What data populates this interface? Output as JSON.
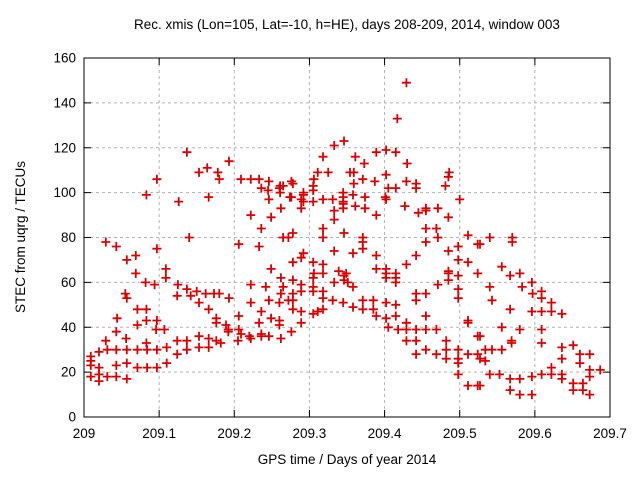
{
  "chart_data": {
    "type": "scatter",
    "title": "Rec. xmis (Lon=105, Lat=-10, h=HE), days 208-209, 2014, window 003",
    "xlabel": "GPS time / Days of year 2014",
    "ylabel": "STEC from uqrg / TECUs",
    "xlim": [
      209,
      209.7
    ],
    "ylim": [
      0,
      160
    ],
    "x_tick_values": [
      209,
      209.1,
      209.2,
      209.3,
      209.4,
      209.5,
      209.6,
      209.7
    ],
    "x_tick_labels": [
      "209",
      "209.1",
      "209.2",
      "209.3",
      "209.4",
      "209.5",
      "209.6",
      "209.7"
    ],
    "y_tick_values": [
      0,
      20,
      40,
      60,
      80,
      100,
      120,
      140,
      160
    ],
    "y_tick_labels": [
      "0",
      "20",
      "40",
      "60",
      "80",
      "100",
      "120",
      "140",
      "160"
    ],
    "grid": true,
    "legend": "none",
    "marker": "plus",
    "marker_color": "#dd0000",
    "grid_color": "#b3b3b3",
    "border_color": "#000000",
    "points": [
      [
        209.137,
        118
      ],
      [
        209.153,
        109
      ],
      [
        209.164,
        111
      ],
      [
        209.178,
        109
      ],
      [
        209.193,
        114
      ],
      [
        209.311,
        109
      ],
      [
        209.318,
        116
      ],
      [
        209.325,
        109
      ],
      [
        209.333,
        121
      ],
      [
        209.346,
        123
      ],
      [
        209.354,
        109
      ],
      [
        209.359,
        109
      ],
      [
        209.361,
        116
      ],
      [
        209.373,
        113
      ],
      [
        209.389,
        118
      ],
      [
        209.402,
        119
      ],
      [
        209.402,
        108
      ],
      [
        209.415,
        118
      ],
      [
        209.417,
        133
      ],
      [
        209.429,
        149
      ],
      [
        209.43,
        113
      ],
      [
        209.486,
        109
      ],
      [
        209.029,
        78
      ],
      [
        209.043,
        76
      ],
      [
        209.055,
        55
      ],
      [
        209.057,
        70
      ],
      [
        209.069,
        72
      ],
      [
        209.069,
        64
      ],
      [
        209.082,
        60
      ],
      [
        209.083,
        99
      ],
      [
        209.094,
        59
      ],
      [
        209.097,
        106
      ],
      [
        209.097,
        75
      ],
      [
        209.109,
        66
      ],
      [
        209.109,
        62
      ],
      [
        209.125,
        59
      ],
      [
        209.126,
        96
      ],
      [
        209.137,
        57
      ],
      [
        209.14,
        80
      ],
      [
        209.15,
        56
      ],
      [
        209.162,
        55
      ],
      [
        209.166,
        98
      ],
      [
        209.173,
        55
      ],
      [
        209.18,
        106
      ],
      [
        209.209,
        106
      ],
      [
        209.222,
        106
      ],
      [
        209.233,
        106
      ],
      [
        209.246,
        105
      ],
      [
        209.276,
        105
      ],
      [
        209.306,
        106
      ],
      [
        209.236,
        102
      ],
      [
        209.245,
        101
      ],
      [
        209.26,
        102
      ],
      [
        209.265,
        103
      ],
      [
        209.246,
        97
      ],
      [
        209.276,
        98
      ],
      [
        209.289,
        97
      ],
      [
        209.292,
        99
      ],
      [
        209.305,
        101
      ],
      [
        209.318,
        97
      ],
      [
        209.331,
        97
      ],
      [
        209.345,
        98
      ],
      [
        209.345,
        96
      ],
      [
        209.345,
        93
      ],
      [
        209.262,
        93
      ],
      [
        209.222,
        90
      ],
      [
        209.249,
        89
      ],
      [
        209.289,
        93
      ],
      [
        209.333,
        92
      ],
      [
        209.333,
        88
      ],
      [
        209.236,
        84
      ],
      [
        209.278,
        82
      ],
      [
        209.265,
        80
      ],
      [
        209.272,
        80
      ],
      [
        209.318,
        84
      ],
      [
        209.318,
        80
      ],
      [
        209.346,
        82
      ],
      [
        209.206,
        77
      ],
      [
        209.233,
        76
      ],
      [
        209.333,
        74
      ],
      [
        209.292,
        73
      ],
      [
        209.289,
        71
      ],
      [
        209.278,
        69
      ],
      [
        209.305,
        69
      ],
      [
        209.318,
        68
      ],
      [
        209.249,
        66
      ],
      [
        209.339,
        65
      ],
      [
        209.349,
        64
      ],
      [
        209.306,
        64
      ],
      [
        209.318,
        64
      ],
      [
        209.262,
        62
      ],
      [
        209.265,
        58
      ],
      [
        209.278,
        61
      ],
      [
        209.222,
        59
      ],
      [
        209.242,
        58
      ],
      [
        209.289,
        59
      ],
      [
        209.305,
        62
      ],
      [
        209.305,
        58
      ],
      [
        209.318,
        56
      ],
      [
        209.333,
        60
      ],
      [
        209.346,
        63
      ],
      [
        209.346,
        61
      ],
      [
        209.289,
        56
      ],
      [
        209.278,
        55
      ],
      [
        209.262,
        55
      ],
      [
        209.305,
        56
      ],
      [
        209.18,
        55
      ],
      [
        209.261,
        103
      ],
      [
        209.261,
        100
      ],
      [
        209.274,
        98
      ],
      [
        209.292,
        100
      ],
      [
        209.292,
        96
      ],
      [
        209.305,
        103
      ],
      [
        209.305,
        96
      ],
      [
        209.345,
        100
      ],
      [
        209.345,
        95
      ],
      [
        209.278,
        104
      ],
      [
        209.371,
        106
      ],
      [
        209.387,
        105
      ],
      [
        209.429,
        105
      ],
      [
        209.442,
        104
      ],
      [
        209.485,
        107
      ],
      [
        209.405,
        102
      ],
      [
        209.415,
        102
      ],
      [
        209.442,
        102
      ],
      [
        209.481,
        103
      ],
      [
        209.358,
        99
      ],
      [
        209.374,
        98
      ],
      [
        209.361,
        94
      ],
      [
        209.374,
        93
      ],
      [
        209.401,
        98
      ],
      [
        209.402,
        97
      ],
      [
        209.389,
        90
      ],
      [
        209.427,
        94
      ],
      [
        209.445,
        91
      ],
      [
        209.455,
        93
      ],
      [
        209.455,
        92
      ],
      [
        209.471,
        93
      ],
      [
        209.5,
        97
      ],
      [
        209.485,
        89
      ],
      [
        209.455,
        84
      ],
      [
        209.469,
        84
      ],
      [
        209.471,
        80
      ],
      [
        209.455,
        78
      ],
      [
        209.371,
        80
      ],
      [
        209.371,
        78
      ],
      [
        209.371,
        75
      ],
      [
        209.511,
        81
      ],
      [
        209.498,
        76
      ],
      [
        209.358,
        73
      ],
      [
        209.389,
        72
      ],
      [
        209.485,
        74
      ],
      [
        209.442,
        72
      ],
      [
        209.429,
        68
      ],
      [
        209.498,
        70
      ],
      [
        209.511,
        69
      ],
      [
        209.389,
        66
      ],
      [
        209.402,
        66
      ],
      [
        209.402,
        64
      ],
      [
        209.402,
        62
      ],
      [
        209.415,
        64
      ],
      [
        209.415,
        62
      ],
      [
        209.351,
        60
      ],
      [
        209.358,
        58
      ],
      [
        209.415,
        60
      ],
      [
        209.442,
        55
      ],
      [
        209.455,
        55
      ],
      [
        209.471,
        59
      ],
      [
        209.485,
        65
      ],
      [
        209.485,
        64
      ],
      [
        209.485,
        61
      ],
      [
        209.498,
        63
      ],
      [
        209.498,
        57
      ],
      [
        209.524,
        64
      ],
      [
        209.524,
        77
      ],
      [
        209.359,
        104
      ],
      [
        209.54,
        80
      ],
      [
        209.57,
        80
      ],
      [
        209.57,
        78
      ],
      [
        209.556,
        67
      ],
      [
        209.567,
        63
      ],
      [
        209.58,
        64
      ],
      [
        209.54,
        58
      ],
      [
        209.583,
        58
      ],
      [
        209.596,
        60
      ],
      [
        209.597,
        55
      ],
      [
        209.609,
        56
      ],
      [
        209.527,
        77
      ],
      [
        209.057,
        53
      ],
      [
        209.124,
        54
      ],
      [
        209.142,
        54
      ],
      [
        209.153,
        51
      ],
      [
        209.166,
        48
      ],
      [
        209.071,
        48
      ],
      [
        209.083,
        48
      ],
      [
        209.044,
        44
      ],
      [
        209.071,
        41
      ],
      [
        209.083,
        43
      ],
      [
        209.097,
        43
      ],
      [
        209.043,
        38
      ],
      [
        209.096,
        39
      ],
      [
        209.107,
        39
      ],
      [
        209.029,
        34
      ],
      [
        209.056,
        35
      ],
      [
        209.083,
        33
      ],
      [
        209.124,
        34
      ],
      [
        209.137,
        34
      ],
      [
        209.153,
        36
      ],
      [
        209.166,
        35
      ],
      [
        209.009,
        27
      ],
      [
        209.02,
        29
      ],
      [
        209.031,
        30
      ],
      [
        209.043,
        30
      ],
      [
        209.057,
        30
      ],
      [
        209.071,
        30
      ],
      [
        209.084,
        30
      ],
      [
        209.097,
        30
      ],
      [
        209.11,
        31
      ],
      [
        209.124,
        28
      ],
      [
        209.137,
        30
      ],
      [
        209.153,
        31
      ],
      [
        209.166,
        31
      ],
      [
        209.009,
        25
      ],
      [
        209.009,
        23
      ],
      [
        209.02,
        22
      ],
      [
        209.043,
        23
      ],
      [
        209.057,
        24
      ],
      [
        209.071,
        22
      ],
      [
        209.084,
        22
      ],
      [
        209.097,
        22
      ],
      [
        209.11,
        24
      ],
      [
        209.009,
        18
      ],
      [
        209.02,
        16
      ],
      [
        209.031,
        18
      ],
      [
        209.043,
        18
      ],
      [
        209.057,
        17
      ],
      [
        209.02,
        19
      ],
      [
        209.193,
        53
      ],
      [
        209.222,
        51
      ],
      [
        209.246,
        52
      ],
      [
        209.26,
        51
      ],
      [
        209.272,
        52
      ],
      [
        209.278,
        52
      ],
      [
        209.278,
        48
      ],
      [
        209.236,
        47
      ],
      [
        209.249,
        44
      ],
      [
        209.26,
        43
      ],
      [
        209.206,
        45
      ],
      [
        209.176,
        44
      ],
      [
        209.176,
        42
      ],
      [
        209.189,
        41
      ],
      [
        209.233,
        42
      ],
      [
        209.26,
        41
      ],
      [
        209.289,
        47
      ],
      [
        209.305,
        46
      ],
      [
        209.311,
        47
      ],
      [
        209.318,
        48
      ],
      [
        209.331,
        52
      ],
      [
        209.345,
        51
      ],
      [
        209.318,
        53
      ],
      [
        209.289,
        42
      ],
      [
        209.192,
        39
      ],
      [
        209.192,
        38
      ],
      [
        209.206,
        39
      ],
      [
        209.209,
        37
      ],
      [
        209.22,
        36
      ],
      [
        209.222,
        35
      ],
      [
        209.236,
        37
      ],
      [
        209.236,
        36
      ],
      [
        209.246,
        36
      ],
      [
        209.262,
        35
      ],
      [
        209.276,
        38
      ],
      [
        209.176,
        34
      ],
      [
        209.182,
        33
      ],
      [
        209.205,
        34
      ],
      [
        209.358,
        49
      ],
      [
        209.371,
        52
      ],
      [
        209.371,
        48
      ],
      [
        209.385,
        52
      ],
      [
        209.385,
        48
      ],
      [
        209.389,
        45
      ],
      [
        209.402,
        51
      ],
      [
        209.402,
        44
      ],
      [
        209.405,
        40
      ],
      [
        209.415,
        50
      ],
      [
        209.415,
        45
      ],
      [
        209.418,
        39
      ],
      [
        209.429,
        42
      ],
      [
        209.429,
        39
      ],
      [
        209.442,
        52
      ],
      [
        209.442,
        39
      ],
      [
        209.429,
        34
      ],
      [
        209.442,
        34
      ],
      [
        209.455,
        45
      ],
      [
        209.455,
        39
      ],
      [
        209.469,
        39
      ],
      [
        209.442,
        28
      ],
      [
        209.455,
        30
      ],
      [
        209.469,
        28
      ],
      [
        209.482,
        34
      ],
      [
        209.482,
        30
      ],
      [
        209.482,
        26
      ],
      [
        209.498,
        53
      ],
      [
        209.498,
        30
      ],
      [
        209.498,
        26
      ],
      [
        209.498,
        24
      ],
      [
        209.498,
        19
      ],
      [
        209.511,
        43
      ],
      [
        209.511,
        42
      ],
      [
        209.511,
        28
      ],
      [
        209.524,
        36
      ],
      [
        209.524,
        28
      ],
      [
        209.511,
        14
      ],
      [
        209.524,
        14
      ],
      [
        209.543,
        52
      ],
      [
        209.567,
        48
      ],
      [
        209.596,
        47
      ],
      [
        209.609,
        53
      ],
      [
        209.622,
        51
      ],
      [
        209.609,
        47
      ],
      [
        209.622,
        47
      ],
      [
        209.636,
        46
      ],
      [
        209.556,
        40
      ],
      [
        209.58,
        39
      ],
      [
        209.527,
        36
      ],
      [
        209.534,
        30
      ],
      [
        209.543,
        30
      ],
      [
        209.527,
        26
      ],
      [
        209.534,
        25
      ],
      [
        209.556,
        30
      ],
      [
        209.569,
        34
      ],
      [
        209.569,
        33
      ],
      [
        209.609,
        39
      ],
      [
        209.609,
        33
      ],
      [
        209.636,
        31
      ],
      [
        209.651,
        32
      ],
      [
        209.66,
        28
      ],
      [
        209.673,
        28
      ],
      [
        209.687,
        21
      ],
      [
        209.673,
        21
      ],
      [
        209.66,
        24
      ],
      [
        209.636,
        26
      ],
      [
        209.622,
        22
      ],
      [
        209.636,
        19
      ],
      [
        209.636,
        17
      ],
      [
        209.622,
        19
      ],
      [
        209.609,
        19
      ],
      [
        209.54,
        19
      ],
      [
        209.553,
        19
      ],
      [
        209.567,
        17
      ],
      [
        209.58,
        17
      ],
      [
        209.596,
        18
      ],
      [
        209.527,
        14
      ],
      [
        209.567,
        12
      ],
      [
        209.58,
        10
      ],
      [
        209.596,
        10
      ],
      [
        209.651,
        15
      ],
      [
        209.651,
        12
      ],
      [
        209.664,
        15
      ],
      [
        209.664,
        12
      ],
      [
        209.673,
        18
      ],
      [
        209.673,
        10
      ]
    ]
  }
}
